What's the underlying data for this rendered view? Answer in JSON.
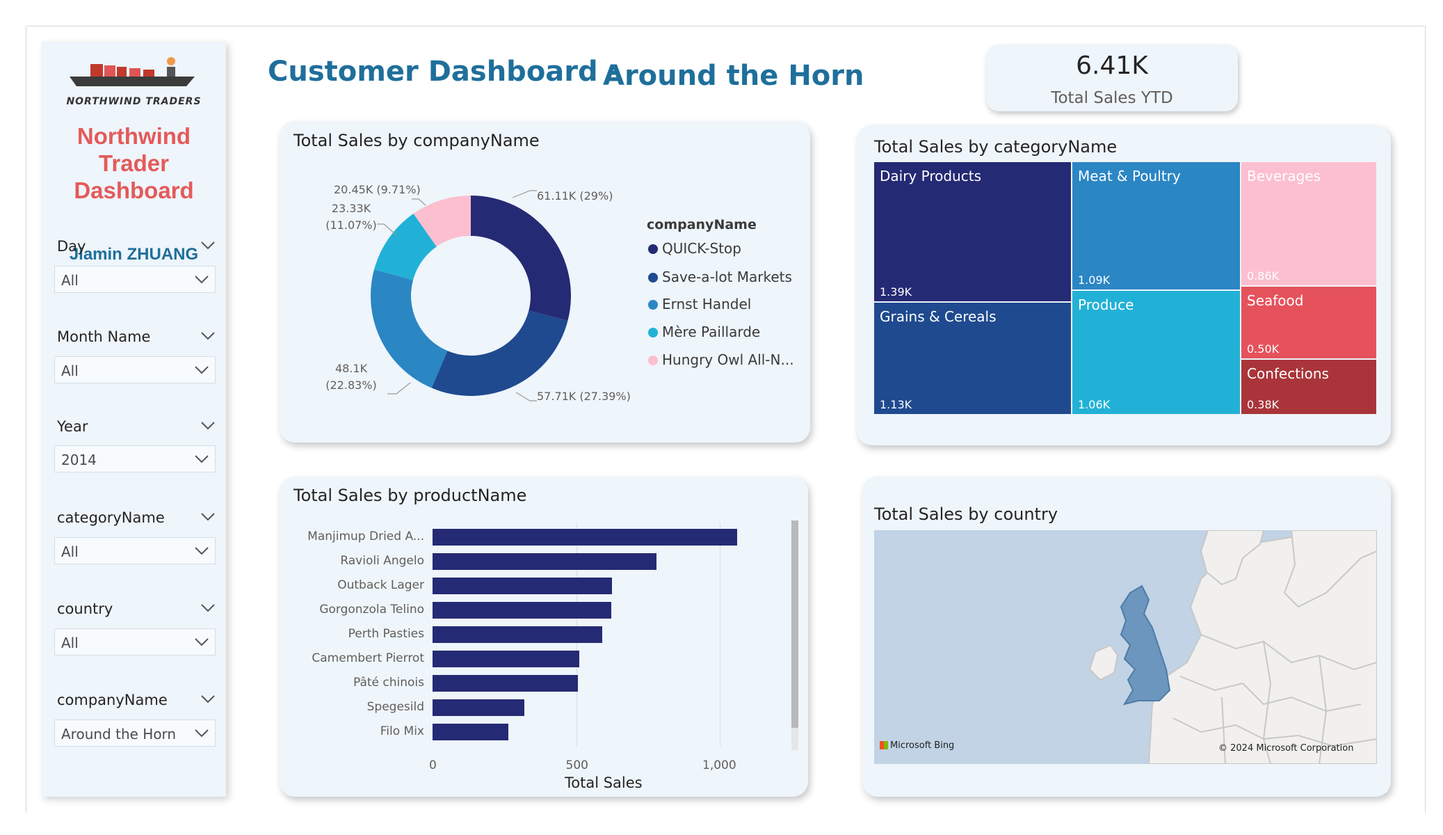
{
  "dashboard": {
    "title": "Customer Dashboard -",
    "subtitle": "Around the Horn"
  },
  "kpi": {
    "value": "6.41K",
    "label": "Total Sales YTD"
  },
  "sidebar": {
    "logo_text": "NORTHWIND TRADERS",
    "brand_lines": [
      "Northwind",
      "Trader",
      "Dashboard"
    ],
    "author": "Jiamin ZHUANG",
    "slicers": [
      {
        "label": "Day",
        "value": "All"
      },
      {
        "label": "Month Name",
        "value": "All"
      },
      {
        "label": "Year",
        "value": "2014"
      },
      {
        "label": "categoryName",
        "value": "All"
      },
      {
        "label": "country",
        "value": "All"
      },
      {
        "label": "companyName",
        "value": "Around the Horn"
      }
    ]
  },
  "donut": {
    "title": "Total Sales by companyName",
    "legend_title": "companyName",
    "chart_data": {
      "type": "pie",
      "title": "Total Sales by companyName",
      "categories": [
        "QUICK-Stop",
        "Save-a-lot Markets",
        "Ernst Handel",
        "Mère Paillarde",
        "Hungry Owl All-N..."
      ],
      "values": [
        61.11,
        57.71,
        48.1,
        23.33,
        20.45
      ],
      "unit": "K",
      "data_labels": [
        "61.11K (29%)",
        "57.71K (27.39%)",
        "48.1K (22.83%)",
        "23.33K (11.07%)",
        "20.45K (9.71%)"
      ],
      "colors": [
        "#252a74",
        "#1f4a8f",
        "#2b86c4",
        "#22b1d6",
        "#fcbfcf"
      ]
    }
  },
  "treemap": {
    "title": "Total Sales by categoryName",
    "chart_data": {
      "type": "treemap",
      "title": "Total Sales by categoryName",
      "categories": [
        "Dairy Products",
        "Grains & Cereals",
        "Meat & Poultry",
        "Produce",
        "Beverages",
        "Seafood",
        "Confections"
      ],
      "values": [
        "1.39K",
        "1.13K",
        "1.09K",
        "1.06K",
        "0.86K",
        "0.50K",
        "0.38K"
      ],
      "colors": [
        "#252a74",
        "#1f4a8f",
        "#2b86c4",
        "#22b1d6",
        "#fcbfcf",
        "#e5525c",
        "#a9353a"
      ]
    }
  },
  "barchart": {
    "title": "Total Sales by productName",
    "chart_data": {
      "type": "bar",
      "title": "Total Sales by productName",
      "categories": [
        "Manjimup Dried A...",
        "Ravioli Angelo",
        "Outback Lager",
        "Gorgonzola Telino",
        "Perth Pasties",
        "Camembert Pierrot",
        "Pâté chinois",
        "Spegesild",
        "Filo Mix"
      ],
      "values": [
        1060,
        780,
        625,
        622,
        590,
        510,
        505,
        320,
        265
      ],
      "xlabel": "Total Sales",
      "xticks": [
        "0",
        "500",
        "1,000"
      ],
      "xlim": [
        0,
        1200
      ],
      "color": "#252a74"
    }
  },
  "map": {
    "title": "Total Sales by country",
    "provider": "Microsoft Bing",
    "copyright": "© 2024 Microsoft Corporation"
  }
}
